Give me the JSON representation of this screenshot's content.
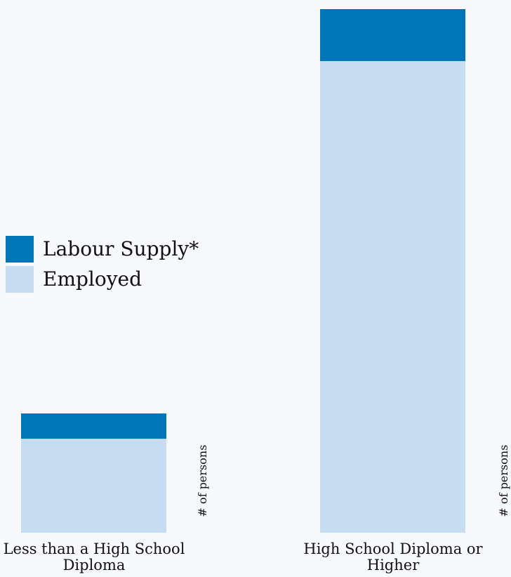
{
  "chart_data": {
    "type": "bar",
    "stacked": true,
    "categories": [
      "Less than a High School Diploma",
      "High School Diploma or Higher"
    ],
    "series": [
      {
        "name": "Employed",
        "color": "#c5dcf1",
        "values": [
          134,
          672
        ]
      },
      {
        "name": "Labour Supply*",
        "color": "#0075b8",
        "values": [
          36,
          74
        ]
      }
    ],
    "ylabel": "# of persons",
    "ylim": [
      0,
      746
    ],
    "grid": false,
    "legend": {
      "placement": "left-middle",
      "order": [
        "Labour Supply*",
        "Employed"
      ]
    },
    "category_labels": [
      [
        "Less than a High School",
        "Diploma"
      ],
      [
        "High School Diploma or",
        "Higher"
      ]
    ]
  }
}
